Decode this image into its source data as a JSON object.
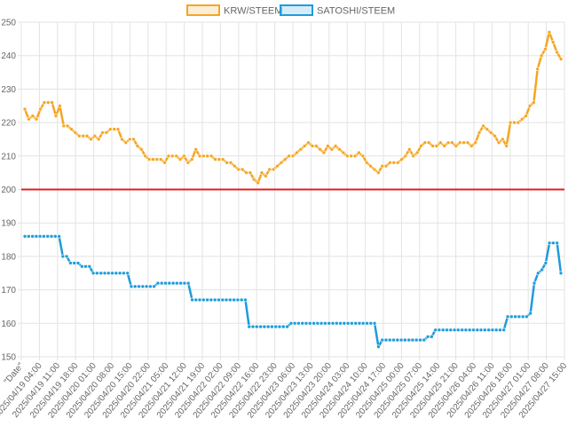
{
  "chart_data": {
    "type": "line",
    "title": "",
    "xlabel": "",
    "ylabel": "",
    "ylim": [
      150,
      250
    ],
    "yticks": [
      150,
      160,
      170,
      180,
      190,
      200,
      210,
      220,
      230,
      240,
      250
    ],
    "grid": true,
    "legend_position": "top",
    "x_tick_labels": [
      "\"Date\"",
      "2025/04/19 04:00",
      "2025/04/19 11:00",
      "2025/04/19 18:00",
      "2025/04/20 01:00",
      "2025/04/20 08:00",
      "2025/04/20 15:00",
      "2025/04/20 22:00",
      "2025/04/21 05:00",
      "2025/04/21 12:00",
      "2025/04/21 19:00",
      "2025/04/22 02:00",
      "2025/04/22 09:00",
      "2025/04/22 16:00",
      "2025/04/22 23:00",
      "2025/04/23 06:00",
      "2025/04/23 13:00",
      "2025/04/23 20:00",
      "2025/04/24 03:00",
      "2025/04/24 10:00",
      "2025/04/24 17:00",
      "2025/04/25 00:00",
      "2025/04/25 07:00",
      "2025/04/25 14:00",
      "2025/04/25 21:00",
      "2025/04/26 04:00",
      "2025/04/26 11:00",
      "2025/04/26 18:00",
      "2025/04/27 01:00",
      "2025/04/27 08:00",
      "2025/04/27 15:00"
    ],
    "reference_line": {
      "y": 200,
      "color": "#e02020"
    },
    "series": [
      {
        "name": "KRW/STEEM",
        "color": "#f5a623",
        "values": [
          224,
          221,
          222,
          221,
          224,
          226,
          226,
          226,
          222,
          225,
          219,
          219,
          218,
          217,
          216,
          216,
          216,
          215,
          216,
          215,
          217,
          217,
          218,
          218,
          218,
          215,
          214,
          215,
          215,
          213,
          212,
          210,
          209,
          209,
          209,
          209,
          208,
          210,
          210,
          210,
          209,
          210,
          208,
          209,
          212,
          210,
          210,
          210,
          210,
          209,
          209,
          209,
          208,
          208,
          207,
          206,
          206,
          205,
          205,
          203,
          202,
          205,
          204,
          206,
          206,
          207,
          208,
          209,
          210,
          210,
          211,
          212,
          213,
          214,
          213,
          213,
          212,
          211,
          213,
          212,
          213,
          212,
          211,
          210,
          210,
          210,
          211,
          210,
          208,
          207,
          206,
          205,
          207,
          207,
          208,
          208,
          208,
          209,
          210,
          212,
          210,
          211,
          213,
          214,
          214,
          213,
          213,
          214,
          213,
          214,
          214,
          213,
          214,
          214,
          214,
          213,
          214,
          217,
          219,
          218,
          217,
          216,
          214,
          215,
          213,
          220,
          220,
          220,
          221,
          222,
          225,
          226,
          236,
          240,
          242,
          247,
          244,
          241,
          239
        ]
      },
      {
        "name": "SATOSHI/STEEM",
        "color": "#1e9bdc",
        "values": [
          186,
          186,
          186,
          186,
          186,
          186,
          186,
          186,
          186,
          186,
          180,
          180,
          178,
          178,
          178,
          177,
          177,
          177,
          175,
          175,
          175,
          175,
          175,
          175,
          175,
          175,
          175,
          175,
          171,
          171,
          171,
          171,
          171,
          171,
          171,
          172,
          172,
          172,
          172,
          172,
          172,
          172,
          172,
          172,
          167,
          167,
          167,
          167,
          167,
          167,
          167,
          167,
          167,
          167,
          167,
          167,
          167,
          167,
          167,
          159,
          159,
          159,
          159,
          159,
          159,
          159,
          159,
          159,
          159,
          159,
          160,
          160,
          160,
          160,
          160,
          160,
          160,
          160,
          160,
          160,
          160,
          160,
          160,
          160,
          160,
          160,
          160,
          160,
          160,
          160,
          160,
          160,
          160,
          153,
          155,
          155,
          155,
          155,
          155,
          155,
          155,
          155,
          155,
          155,
          155,
          155,
          156,
          156,
          158,
          158,
          158,
          158,
          158,
          158,
          158,
          158,
          158,
          158,
          158,
          158,
          158,
          158,
          158,
          158,
          158,
          158,
          158,
          162,
          162,
          162,
          162,
          162,
          162,
          163,
          172,
          175,
          176,
          178,
          184,
          184,
          184,
          175
        ]
      }
    ]
  }
}
